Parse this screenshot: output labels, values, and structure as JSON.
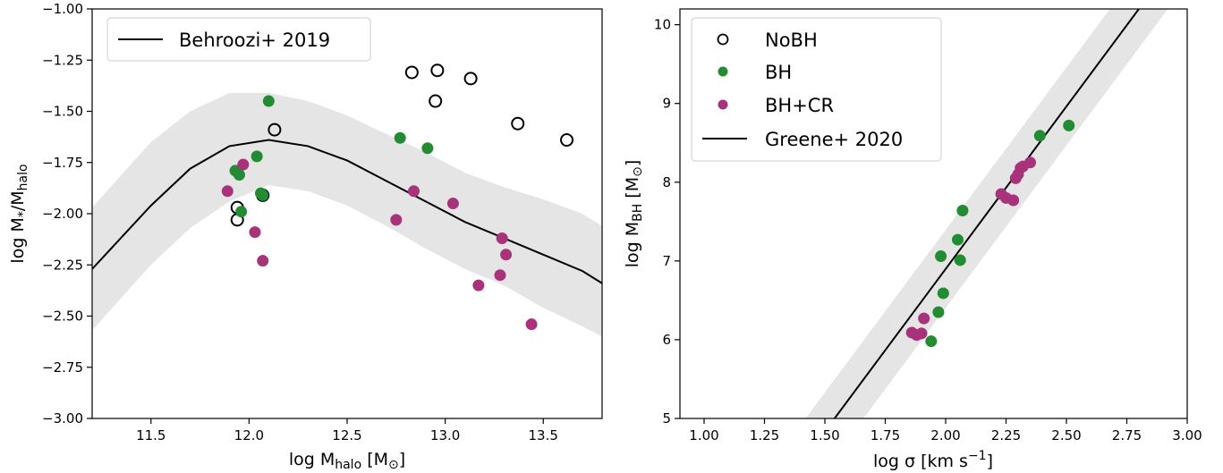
{
  "chart_data": [
    {
      "type": "scatter",
      "panel": "left",
      "xlabel": {
        "base": "log M",
        "sub": "halo",
        "unit": " [M",
        "unit_sub": "⊙",
        "unit_end": "]"
      },
      "ylabel": {
        "base": "log M",
        "sub1": "*",
        "mid": "/M",
        "sub2": "halo"
      },
      "xlim": [
        11.2,
        13.8
      ],
      "ylim": [
        -3.0,
        -1.0
      ],
      "xticks": [
        11.5,
        12.0,
        12.5,
        13.0,
        13.5
      ],
      "xtick_labels": [
        "11.5",
        "12.0",
        "12.5",
        "13.0",
        "13.5"
      ],
      "yticks": [
        -1.0,
        -1.25,
        -1.5,
        -1.75,
        -2.0,
        -2.25,
        -2.5,
        -2.75,
        -3.0
      ],
      "ytick_labels": [
        "−1.00",
        "−1.25",
        "−1.50",
        "−1.75",
        "−2.00",
        "−2.25",
        "−2.50",
        "−2.75",
        "−3.00"
      ],
      "legend_position": "top-left",
      "reference_line": {
        "name": "Behroozi+ 2019",
        "x": [
          11.2,
          11.5,
          11.7,
          11.9,
          12.1,
          12.3,
          12.5,
          12.7,
          12.9,
          13.1,
          13.3,
          13.5,
          13.7,
          13.8
        ],
        "y": [
          -2.27,
          -1.96,
          -1.78,
          -1.67,
          -1.64,
          -1.67,
          -1.74,
          -1.84,
          -1.94,
          -2.04,
          -2.12,
          -2.2,
          -2.28,
          -2.34
        ],
        "band_upper": [
          -1.97,
          -1.65,
          -1.5,
          -1.41,
          -1.41,
          -1.45,
          -1.52,
          -1.61,
          -1.7,
          -1.8,
          -1.87,
          -1.93,
          -2.0,
          -2.06
        ],
        "band_lower": [
          -2.57,
          -2.25,
          -2.07,
          -1.94,
          -1.86,
          -1.89,
          -1.96,
          -2.06,
          -2.17,
          -2.27,
          -2.35,
          -2.46,
          -2.55,
          -2.6
        ]
      },
      "series": [
        {
          "name": "NoBH",
          "color": "#000000",
          "filled": false,
          "x": [
            11.94,
            11.94,
            12.07,
            12.13,
            12.83,
            12.96,
            12.95,
            13.13,
            13.37,
            13.62
          ],
          "y": [
            -1.97,
            -2.03,
            -1.91,
            -1.59,
            -1.31,
            -1.3,
            -1.45,
            -1.34,
            -1.56,
            -1.64
          ]
        },
        {
          "name": "BH",
          "color": "#238b32",
          "filled": true,
          "x": [
            11.93,
            11.95,
            11.96,
            12.04,
            12.06,
            12.1,
            12.77,
            12.91,
            12.07
          ],
          "y": [
            -1.79,
            -1.81,
            -1.99,
            -1.72,
            -1.9,
            -1.45,
            -1.63,
            -1.68,
            -1.91
          ]
        },
        {
          "name": "BH+CR",
          "color": "#a8337a",
          "filled": true,
          "x": [
            11.89,
            11.97,
            12.03,
            12.07,
            12.75,
            12.84,
            13.04,
            13.17,
            13.28,
            13.29,
            13.31,
            13.44
          ],
          "y": [
            -1.89,
            -1.76,
            -2.09,
            -2.23,
            -2.03,
            -1.89,
            -1.95,
            -2.35,
            -2.3,
            -2.12,
            -2.2,
            -2.54
          ]
        }
      ]
    },
    {
      "type": "scatter",
      "panel": "right",
      "xlabel": {
        "base": "log σ [km s",
        "sup": "−1",
        "end": "]"
      },
      "ylabel": {
        "base": "log M",
        "sub": "BH",
        "unit": " [M",
        "unit_sub": "⊙",
        "unit_end": "]"
      },
      "xlim": [
        0.9,
        3.0
      ],
      "ylim": [
        5.0,
        10.2
      ],
      "xticks": [
        1.0,
        1.25,
        1.5,
        1.75,
        2.0,
        2.25,
        2.5,
        2.75,
        3.0
      ],
      "xtick_labels": [
        "1.00",
        "1.25",
        "1.50",
        "1.75",
        "2.00",
        "2.25",
        "2.50",
        "2.75",
        "3.00"
      ],
      "yticks": [
        5,
        6,
        7,
        8,
        9,
        10
      ],
      "ytick_labels": [
        "5",
        "6",
        "7",
        "8",
        "9",
        "10"
      ],
      "legend_position": "top-left",
      "reference_line": {
        "name": "Greene+ 2020",
        "x": [
          1.54,
          2.8
        ],
        "y": [
          5.0,
          10.2
        ],
        "band_width_x": 0.12
      },
      "series": [
        {
          "name": "NoBH",
          "color": "#000000",
          "filled": false,
          "x": [],
          "y": []
        },
        {
          "name": "BH",
          "color": "#238b32",
          "filled": true,
          "x": [
            1.94,
            1.97,
            1.98,
            1.99,
            2.05,
            2.06,
            2.07,
            2.39,
            2.51
          ],
          "y": [
            5.98,
            6.35,
            7.06,
            6.59,
            7.27,
            7.01,
            7.64,
            8.59,
            8.72
          ]
        },
        {
          "name": "BH+CR",
          "color": "#a8337a",
          "filled": true,
          "x": [
            1.86,
            1.88,
            1.9,
            1.91,
            2.23,
            2.25,
            2.28,
            2.29,
            2.3,
            2.31,
            2.32,
            2.35
          ],
          "y": [
            6.09,
            6.06,
            6.08,
            6.27,
            7.85,
            7.8,
            7.77,
            8.05,
            8.1,
            8.18,
            8.2,
            8.25
          ]
        }
      ]
    }
  ]
}
